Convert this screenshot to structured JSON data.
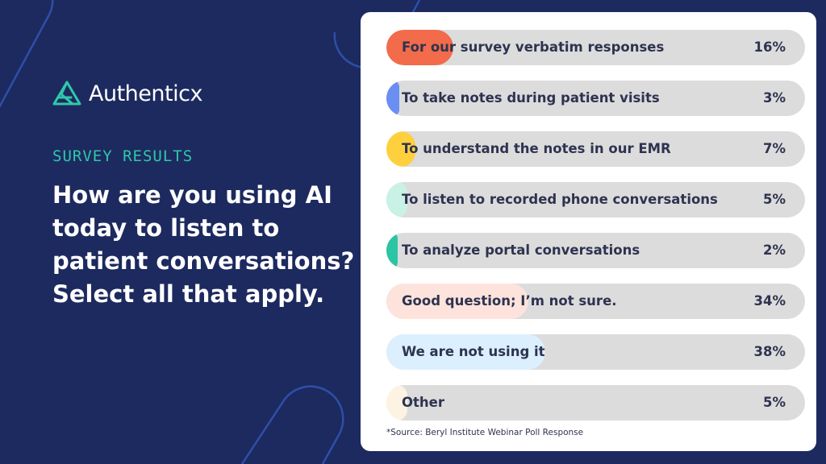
{
  "brand": {
    "name": "Authenticx",
    "accent": "#2fc8aa",
    "background": "#1d2a5f"
  },
  "eyebrow": "SURVEY RESULTS",
  "question": "How are you using AI today to listen to patient conversations? Select all that apply.",
  "chart_data": {
    "type": "bar",
    "orientation": "horizontal",
    "xlim": [
      0,
      100
    ],
    "categories": [
      "For our survey verbatim responses",
      "To take notes during patient visits",
      "To understand the notes in our EMR",
      "To listen to recorded phone conversations",
      "To analyze portal conversations",
      "Good question; I’m not sure.",
      "We are not using it",
      "Other"
    ],
    "values": [
      16,
      3,
      7,
      5,
      2,
      34,
      38,
      5
    ],
    "value_labels": [
      "16%",
      "3%",
      "7%",
      "5%",
      "2%",
      "34%",
      "38%",
      "5%"
    ],
    "colors": [
      "#f26b4b",
      "#6b8ef2",
      "#ffd03d",
      "#c9f1e5",
      "#2bc4a4",
      "#fde3dc",
      "#dcefff",
      "#fdf3e3"
    ],
    "track_color": "#dcdcdc"
  },
  "source": "*Source: Beryl Institute Webinar Poll Response"
}
